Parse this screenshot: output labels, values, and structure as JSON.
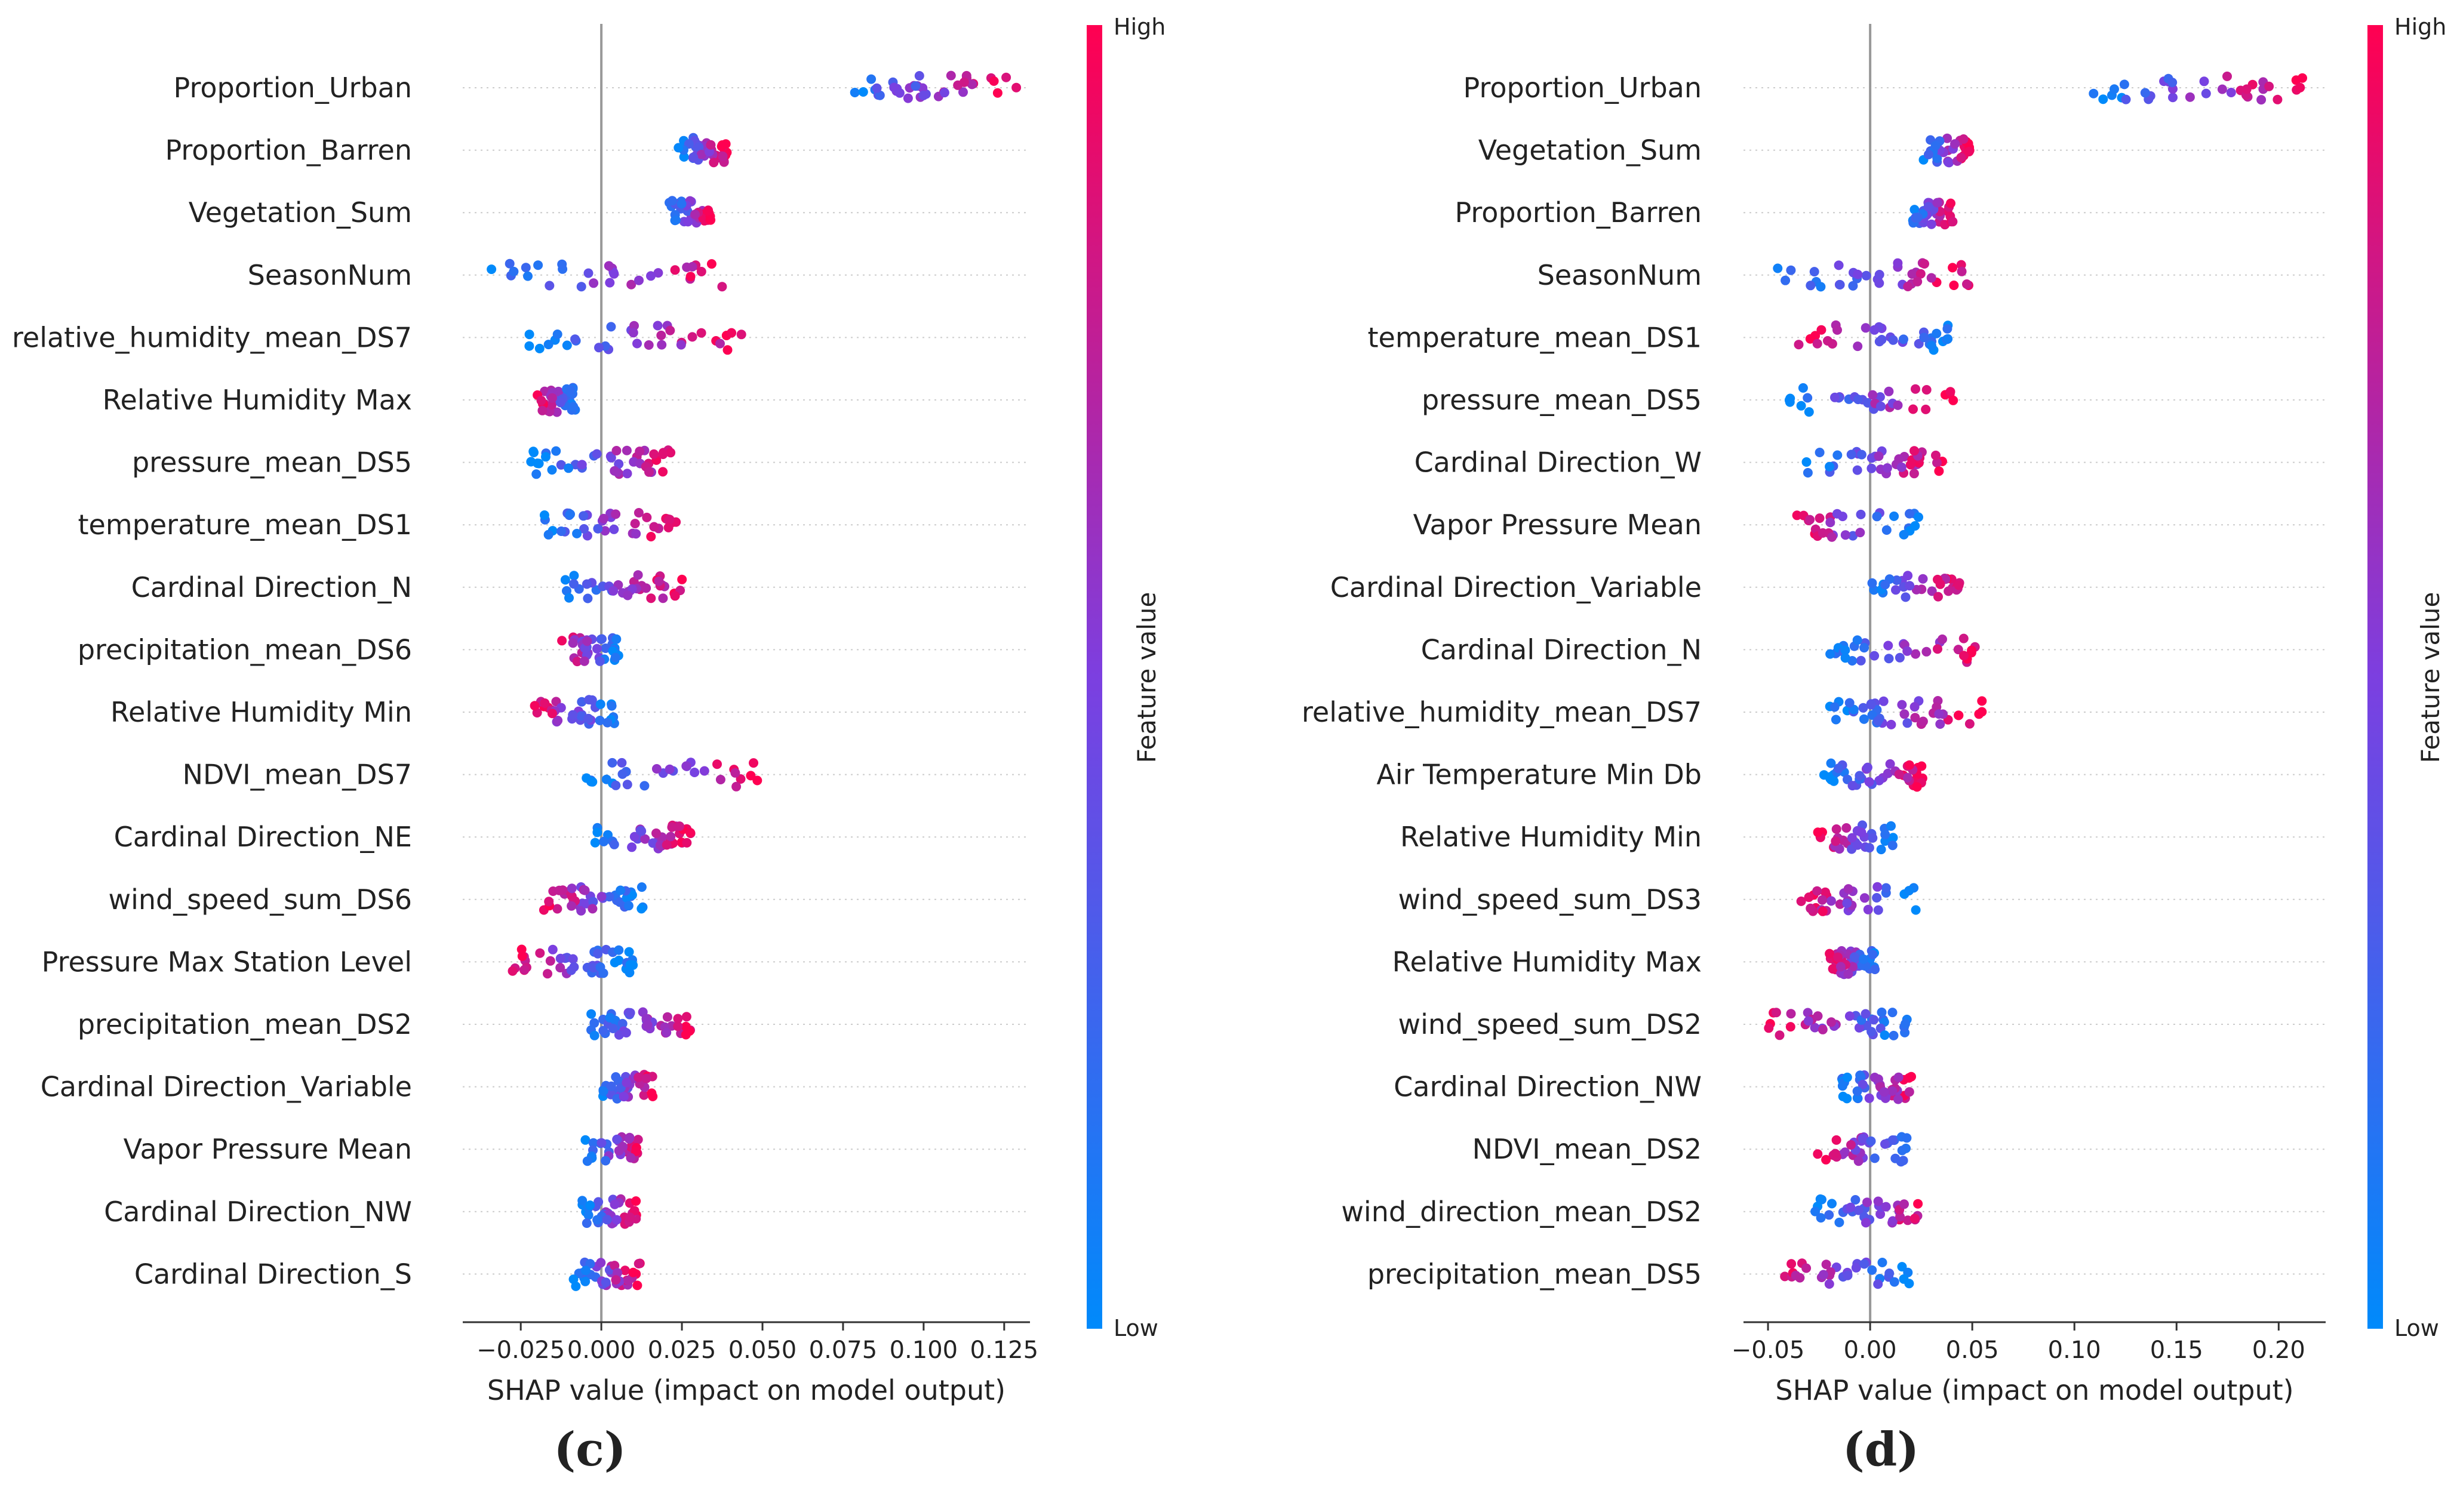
{
  "colors": {
    "low": "#008afb",
    "mid": "#7c3fe0",
    "high": "#ff0051",
    "axis": "#333333",
    "zero_line": "#999999",
    "row_guide": "#cccccc"
  },
  "colorbar": {
    "high_label": "High",
    "low_label": "Low",
    "title": "Feature value"
  },
  "chart_data": [
    {
      "type": "scatter",
      "subtype": "shap_beeswarm",
      "panel_label": "(c)",
      "xlabel": "SHAP value (impact on model output)",
      "xlim": [
        -0.043,
        0.133
      ],
      "xticks": [
        -0.025,
        0.0,
        0.025,
        0.05,
        0.075,
        0.1,
        0.125
      ],
      "xtick_labels": [
        "−0.025",
        "0.000",
        "0.025",
        "0.050",
        "0.075",
        "0.100",
        "0.125"
      ],
      "features": [
        {
          "name": "Proportion_Urban",
          "min": 0.072,
          "max": 0.129
        },
        {
          "name": "Proportion_Barren",
          "min": 0.023,
          "max": 0.039
        },
        {
          "name": "Vegetation_Sum",
          "min": 0.021,
          "max": 0.034
        },
        {
          "name": "SeasonNum",
          "min": -0.036,
          "max": 0.04
        },
        {
          "name": "relative_humidity_mean_DS7",
          "min": -0.023,
          "max": 0.046
        },
        {
          "name": "Relative Humidity Max",
          "min": -0.02,
          "max": -0.008
        },
        {
          "name": "pressure_mean_DS5",
          "min": -0.022,
          "max": 0.026
        },
        {
          "name": "temperature_mean_DS1",
          "min": -0.019,
          "max": 0.024
        },
        {
          "name": "Cardinal Direction_N",
          "min": -0.014,
          "max": 0.026
        },
        {
          "name": "precipitation_mean_DS6",
          "min": -0.014,
          "max": 0.006
        },
        {
          "name": "Relative Humidity Min",
          "min": -0.021,
          "max": 0.005
        },
        {
          "name": "NDVI_mean_DS7",
          "min": -0.006,
          "max": 0.05
        },
        {
          "name": "Cardinal Direction_NE",
          "min": -0.002,
          "max": 0.028
        },
        {
          "name": "wind_speed_sum_DS6",
          "min": -0.018,
          "max": 0.013
        },
        {
          "name": "Pressure Max Station Level",
          "min": -0.03,
          "max": 0.01
        },
        {
          "name": "precipitation_mean_DS2",
          "min": -0.004,
          "max": 0.028
        },
        {
          "name": "Cardinal Direction_Variable",
          "min": 0.0,
          "max": 0.016
        },
        {
          "name": "Vapor Pressure Mean",
          "min": -0.005,
          "max": 0.013
        },
        {
          "name": "Cardinal Direction_NW",
          "min": -0.006,
          "max": 0.011
        },
        {
          "name": "Cardinal Direction_S",
          "min": -0.009,
          "max": 0.012
        }
      ]
    },
    {
      "type": "scatter",
      "subtype": "shap_beeswarm",
      "panel_label": "(d)",
      "xlabel": "SHAP value (impact on model output)",
      "xlim": [
        -0.062,
        0.223
      ],
      "xticks": [
        -0.05,
        0.0,
        0.05,
        0.1,
        0.15,
        0.2
      ],
      "xtick_labels": [
        "−0.05",
        "0.00",
        "0.05",
        "0.10",
        "0.15",
        "0.20"
      ],
      "features": [
        {
          "name": "Proportion_Urban",
          "min": 0.108,
          "max": 0.212
        },
        {
          "name": "Vegetation_Sum",
          "min": 0.026,
          "max": 0.049
        },
        {
          "name": "Proportion_Barren",
          "min": 0.02,
          "max": 0.041
        },
        {
          "name": "SeasonNum",
          "min": -0.046,
          "max": 0.052
        },
        {
          "name": "temperature_mean_DS1",
          "min": -0.04,
          "max": 0.04
        },
        {
          "name": "pressure_mean_DS5",
          "min": -0.04,
          "max": 0.041
        },
        {
          "name": "Cardinal Direction_W",
          "min": -0.033,
          "max": 0.037
        },
        {
          "name": "Vapor Pressure Mean",
          "min": -0.04,
          "max": 0.025
        },
        {
          "name": "Cardinal Direction_Variable",
          "min": -0.002,
          "max": 0.045
        },
        {
          "name": "Cardinal Direction_N",
          "min": -0.02,
          "max": 0.055
        },
        {
          "name": "relative_humidity_mean_DS7",
          "min": -0.02,
          "max": 0.055
        },
        {
          "name": "Air Temperature Min Db",
          "min": -0.023,
          "max": 0.027
        },
        {
          "name": "Relative Humidity Min",
          "min": -0.027,
          "max": 0.012
        },
        {
          "name": "wind_speed_sum_DS3",
          "min": -0.035,
          "max": 0.025
        },
        {
          "name": "Relative Humidity Max",
          "min": -0.02,
          "max": 0.004
        },
        {
          "name": "wind_speed_sum_DS2",
          "min": -0.05,
          "max": 0.02
        },
        {
          "name": "Cardinal Direction_NW",
          "min": -0.015,
          "max": 0.023
        },
        {
          "name": "NDVI_mean_DS2",
          "min": -0.026,
          "max": 0.02
        },
        {
          "name": "wind_direction_mean_DS2",
          "min": -0.027,
          "max": 0.029
        },
        {
          "name": "precipitation_mean_DS5",
          "min": -0.045,
          "max": 0.02
        }
      ]
    }
  ]
}
